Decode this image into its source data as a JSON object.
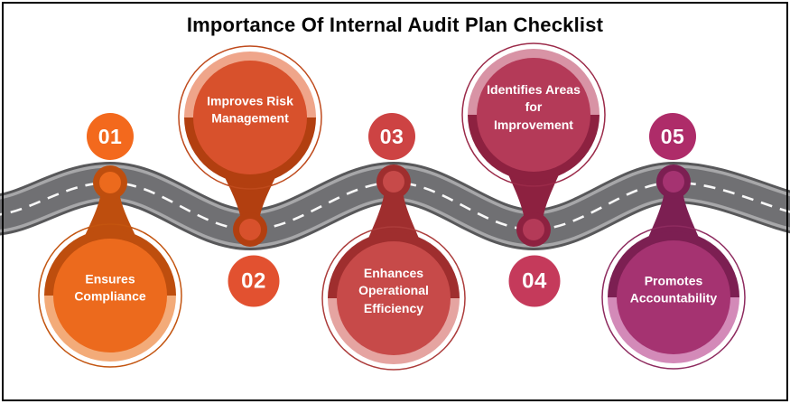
{
  "title": "Importance Of Internal Audit Plan Checklist",
  "frame_color": "#000000",
  "background_color": "#ffffff",
  "road": {
    "edge_color": "#58585A",
    "stripe_color": "#A7A7A9",
    "surface_color": "#707073",
    "dash_color": "#F8F8F8"
  },
  "items": [
    {
      "number": "01",
      "label_lines": [
        "Ensures",
        "Compliance"
      ],
      "colors": {
        "main": "#EC6A1D",
        "dark": "#BE4E0E",
        "light": "#F3AB79",
        "badge": "#F3691D",
        "outline": "#C3540F"
      }
    },
    {
      "number": "02",
      "label_lines": [
        "Improves Risk",
        "Management"
      ],
      "colors": {
        "main": "#D8512C",
        "dark": "#B23F10",
        "light": "#EFA58A",
        "badge": "#E25130",
        "outline": "#BF4A1C"
      }
    },
    {
      "number": "03",
      "label_lines": [
        "Enhances",
        "Operational",
        "Efficiency"
      ],
      "colors": {
        "main": "#C74A49",
        "dark": "#9F2E2E",
        "light": "#E5A4A1",
        "badge": "#CD4343",
        "outline": "#AC3C3B"
      }
    },
    {
      "number": "04",
      "label_lines": [
        "Identifies Areas",
        "for",
        "Improvement"
      ],
      "colors": {
        "main": "#B43A58",
        "dark": "#8D2140",
        "light": "#D893A5",
        "badge": "#C53A5B",
        "outline": "#9B2A49"
      }
    },
    {
      "number": "05",
      "label_lines": [
        "Promotes",
        "Accountability"
      ],
      "colors": {
        "main": "#A53371",
        "dark": "#7C1F52",
        "light": "#D38AB8",
        "badge": "#AE2C69",
        "outline": "#8E2B5F"
      }
    }
  ]
}
